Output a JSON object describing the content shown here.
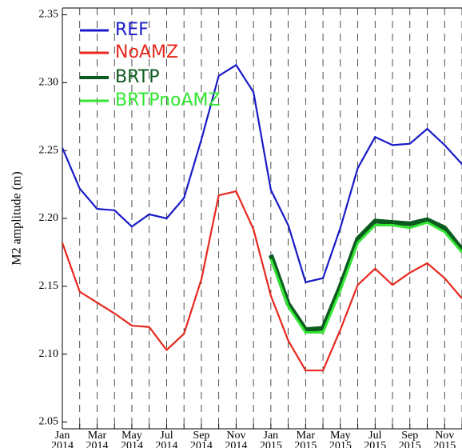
{
  "chart_data": {
    "type": "line",
    "ylabel": "M2 amplitude (m)",
    "categories": [
      "Jan 2014",
      null,
      "Mar 2014",
      null,
      "May 2014",
      null,
      "Jul 2014",
      null,
      "Sep 2014",
      null,
      "Nov 2014",
      null,
      "Jan 2015",
      null,
      "Mar 2015",
      null,
      "May 2015",
      null,
      "Jul 2015",
      null,
      "Sep 2015",
      null,
      "Nov 2015",
      null
    ],
    "series": [
      {
        "name": "REF",
        "color": "#1a1ac8",
        "values": [
          2.252,
          2.222,
          2.207,
          2.206,
          2.194,
          2.203,
          2.2,
          2.215,
          2.258,
          2.305,
          2.313,
          2.293,
          2.221,
          2.195,
          2.153,
          2.156,
          2.193,
          2.237,
          2.26,
          2.254,
          2.255,
          2.266,
          2.254,
          2.24
        ]
      },
      {
        "name": "NoAMZ",
        "color": "#e8281e",
        "values": [
          2.182,
          2.146,
          2.138,
          2.13,
          2.121,
          2.12,
          2.103,
          2.115,
          2.155,
          2.217,
          2.22,
          2.192,
          2.143,
          2.11,
          2.088,
          2.088,
          2.118,
          2.151,
          2.163,
          2.151,
          2.16,
          2.167,
          2.156,
          2.141
        ]
      },
      {
        "name": "BRTP",
        "color": "#0b5a1e",
        "values": [
          null,
          null,
          null,
          null,
          null,
          null,
          null,
          null,
          null,
          null,
          null,
          null,
          2.173,
          2.137,
          2.118,
          2.119,
          2.15,
          2.185,
          2.198,
          2.197,
          2.196,
          2.199,
          2.193,
          2.177
        ]
      },
      {
        "name": "BRTPnoAMZ",
        "color": "#33e633",
        "values": [
          null,
          null,
          null,
          null,
          null,
          null,
          null,
          null,
          null,
          null,
          null,
          null,
          2.17,
          2.135,
          2.116,
          2.116,
          2.147,
          2.182,
          2.195,
          2.195,
          2.193,
          2.197,
          2.19,
          2.175
        ]
      }
    ],
    "ylim": [
      2.045,
      2.355
    ],
    "yticks": [
      2.05,
      {
        "value": 2.1,
        "label": "2.10"
      },
      2.15,
      {
        "value": 2.2,
        "label": "2.20"
      },
      2.25,
      {
        "value": 2.3,
        "label": "2.30"
      },
      2.35
    ],
    "grid": true,
    "legend": "upper-left"
  }
}
